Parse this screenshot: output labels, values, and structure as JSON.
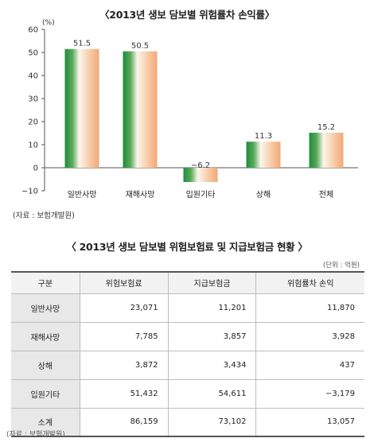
{
  "chart_data": {
    "type": "bar",
    "title": "〈2013년 생보 담보별 위험률차 손익률〉",
    "unit_label": "(%)",
    "categories": [
      "일반사망",
      "재해사망",
      "입원기타",
      "상해",
      "전체"
    ],
    "values": [
      51.5,
      50.5,
      -6.2,
      11.3,
      15.2
    ],
    "value_labels": [
      "51.5",
      "50.5",
      "−6.2",
      "11.3",
      "15.2"
    ],
    "yticks": [
      60,
      50,
      40,
      30,
      20,
      10,
      0,
      -10
    ],
    "ytick_labels": [
      "60",
      "50",
      "40",
      "30",
      "20",
      "10",
      "0",
      "−10"
    ],
    "ylim": [
      -10,
      60
    ],
    "grid": false,
    "colors": {
      "green": "#1e8c3c",
      "peach": "#f2a878",
      "axis": "#555555"
    }
  },
  "chart_source": "(자료 : 보험개발원)",
  "table": {
    "title": "〈 2013년 생보 담보별 위험보험료 및 지급보험금 현황 〉",
    "unit": "(단위 : 억원)",
    "headers": [
      "구분",
      "위험보험료",
      "지급보험금",
      "위험률차 손익"
    ],
    "rows": [
      {
        "label": "일반사망",
        "values": [
          "23,071",
          "11,201",
          "11,870"
        ]
      },
      {
        "label": "재해사망",
        "values": [
          "7,785",
          "3,857",
          "3,928"
        ]
      },
      {
        "label": "상해",
        "values": [
          "3,872",
          "3,434",
          "437"
        ]
      },
      {
        "label": "입원기타",
        "values": [
          "51,432",
          "54,611",
          "−3,179"
        ]
      },
      {
        "label": "소계",
        "values": [
          "86,159",
          "73,102",
          "13,057"
        ]
      }
    ],
    "source": "(자료 : 보험개발원)"
  }
}
